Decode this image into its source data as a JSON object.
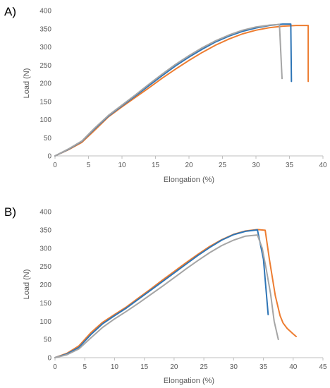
{
  "chart_data": [
    {
      "panel_label": "A)",
      "type": "line",
      "xlabel": "Elongation (%)",
      "ylabel": "Load (N)",
      "xlim": [
        0,
        40
      ],
      "ylim": [
        0,
        400
      ],
      "xticks": [
        0,
        5,
        10,
        15,
        20,
        25,
        30,
        35,
        40
      ],
      "yticks": [
        0,
        50,
        100,
        150,
        200,
        250,
        300,
        350,
        400
      ],
      "grid": false,
      "legend": "none",
      "series": [
        {
          "color": "#ed7d31",
          "x": [
            0,
            2,
            4,
            6,
            8,
            10,
            12,
            14,
            16,
            18,
            20,
            22,
            24,
            26,
            28,
            30,
            32,
            34,
            36,
            37.8,
            37.8
          ],
          "y": [
            0,
            17,
            37,
            72,
            108,
            135,
            161,
            187,
            214,
            239,
            263,
            285,
            305,
            322,
            336,
            346,
            353,
            357,
            359,
            359,
            205
          ]
        },
        {
          "color": "#2e75b6",
          "x": [
            0,
            2,
            4,
            6,
            8,
            10,
            12,
            14,
            16,
            18,
            20,
            22,
            24,
            26,
            28,
            30,
            32,
            34,
            35.2,
            35.3
          ],
          "y": [
            0,
            18,
            40,
            76,
            110,
            138,
            165,
            193,
            221,
            248,
            272,
            294,
            314,
            330,
            343,
            352,
            359,
            363,
            363,
            205
          ]
        },
        {
          "color": "#a5a5a5",
          "x": [
            0,
            2,
            4,
            6,
            8,
            10,
            12,
            14,
            16,
            18,
            20,
            22,
            24,
            26,
            28,
            30,
            32,
            33.5,
            33.9
          ],
          "y": [
            0,
            19,
            41,
            78,
            112,
            140,
            168,
            197,
            225,
            252,
            276,
            298,
            317,
            333,
            346,
            355,
            360,
            362,
            213
          ]
        }
      ]
    },
    {
      "panel_label": "B)",
      "type": "line",
      "xlabel": "Elongation (%)",
      "ylabel": "Load (N)",
      "xlim": [
        0,
        45
      ],
      "ylim": [
        0,
        400
      ],
      "xticks": [
        0,
        5,
        10,
        15,
        20,
        25,
        30,
        35,
        40,
        45
      ],
      "yticks": [
        0,
        50,
        100,
        150,
        200,
        250,
        300,
        350,
        400
      ],
      "grid": false,
      "legend": "none",
      "series": [
        {
          "color": "#ed7d31",
          "x": [
            0,
            2,
            4,
            6,
            8,
            10,
            12,
            14,
            16,
            18,
            20,
            22,
            24,
            26,
            28,
            30,
            32,
            34,
            35.3,
            36,
            37,
            37.8,
            38.3,
            39,
            40,
            40.5
          ],
          "y": [
            0,
            12,
            32,
            68,
            97,
            118,
            139,
            163,
            187,
            212,
            236,
            260,
            283,
            305,
            323,
            338,
            347,
            351,
            349,
            270,
            170,
            115,
            95,
            80,
            65,
            58
          ]
        },
        {
          "color": "#2e75b6",
          "x": [
            0,
            2,
            4,
            6,
            8,
            10,
            12,
            14,
            16,
            18,
            20,
            22,
            24,
            26,
            28,
            30,
            32,
            34,
            35,
            35.8
          ],
          "y": [
            0,
            10,
            28,
            63,
            93,
            115,
            136,
            160,
            184,
            208,
            232,
            256,
            280,
            302,
            322,
            337,
            346,
            350,
            270,
            118
          ]
        },
        {
          "color": "#a5a5a5",
          "x": [
            0,
            2,
            4,
            6,
            8,
            10,
            12,
            14,
            16,
            18,
            20,
            22,
            24,
            26,
            28,
            30,
            32,
            34,
            34.8,
            35.5,
            36.2,
            36.8,
            37.5
          ],
          "y": [
            0,
            8,
            24,
            54,
            83,
            106,
            127,
            149,
            172,
            195,
            219,
            243,
            266,
            288,
            307,
            322,
            333,
            336,
            300,
            240,
            175,
            100,
            50
          ]
        }
      ]
    }
  ]
}
